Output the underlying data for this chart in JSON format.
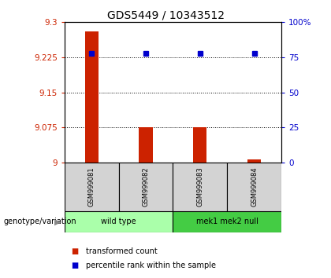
{
  "title": "GDS5449 / 10343512",
  "samples": [
    "GSM999081",
    "GSM999082",
    "GSM999083",
    "GSM999084"
  ],
  "bar_values": [
    9.28,
    9.075,
    9.075,
    9.007
  ],
  "percentile_values": [
    78,
    78,
    78,
    78
  ],
  "y_min": 9.0,
  "y_max": 9.3,
  "y_ticks": [
    9.0,
    9.075,
    9.15,
    9.225,
    9.3
  ],
  "y_ticklabels": [
    "9",
    "9.075",
    "9.15",
    "9.225",
    "9.3"
  ],
  "y2_ticks": [
    0,
    25,
    50,
    75,
    100
  ],
  "y2_ticklabels": [
    "0",
    "25",
    "50",
    "75",
    "100%"
  ],
  "bar_color": "#cc2200",
  "dot_color": "#0000cc",
  "group1_label": "wild type",
  "group1_color": "#aaffaa",
  "group2_label": "mek1 mek2 null",
  "group2_color": "#44cc44",
  "genotype_label": "genotype/variation",
  "legend_bar": "transformed count",
  "legend_dot": "percentile rank within the sample",
  "sample_box_color": "#d3d3d3",
  "title_fontsize": 10,
  "tick_fontsize": 7.5,
  "bar_width": 0.25
}
